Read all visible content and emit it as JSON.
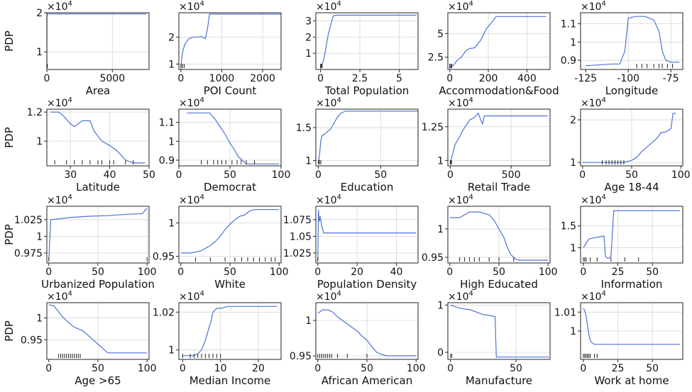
{
  "ylabel": "PDP",
  "sci_base": "×10",
  "sci_exp": "4",
  "chart_data": [
    {
      "type": "line",
      "xlabel": "Area",
      "xlim": [
        0,
        7800
      ],
      "ylim": [
        0.55,
        2.0
      ],
      "xticks": [
        0,
        5000
      ],
      "yticks": [
        1,
        2
      ],
      "grid_x": [
        0,
        5000
      ],
      "grid_y": [
        1,
        2
      ],
      "x": [
        0,
        10,
        40,
        100,
        300,
        7600
      ],
      "y": [
        0.6,
        1.9,
        1.97,
        1.97,
        1.97,
        1.97
      ],
      "rug": [
        0,
        40
      ]
    },
    {
      "type": "line",
      "xlabel": "POI Count",
      "xlim": [
        -50,
        2450
      ],
      "ylim": [
        0.8,
        2.9
      ],
      "xticks": [
        0,
        1000,
        2000
      ],
      "yticks": [
        1,
        2
      ],
      "grid_x": [
        1000,
        2000
      ],
      "grid_y": [
        1,
        2
      ],
      "x": [
        0,
        20,
        50,
        100,
        150,
        200,
        300,
        400,
        500,
        600,
        650,
        700,
        800,
        2450
      ],
      "y": [
        0.8,
        1.2,
        1.5,
        1.75,
        1.85,
        1.95,
        2.0,
        2.0,
        2.02,
        1.95,
        2.3,
        2.85,
        2.85,
        2.85
      ],
      "rug": [
        0,
        40,
        80
      ]
    },
    {
      "type": "line",
      "xlabel": "Total Population",
      "xlim": [
        -300,
        6200
      ],
      "ylim": [
        0.0,
        3.5
      ],
      "xticks": [
        0,
        2.5,
        5.0
      ],
      "xtick_pos": [
        0,
        2500,
        5000
      ],
      "yticks": [
        1,
        2,
        3
      ],
      "grid_x": [
        2500,
        5000
      ],
      "grid_y": [
        1,
        2,
        3
      ],
      "x": [
        0,
        200,
        500,
        800,
        1000,
        6100
      ],
      "y": [
        0.05,
        0.6,
        2.2,
        3.3,
        3.35,
        3.35
      ],
      "rug": [
        0,
        50,
        100
      ]
    },
    {
      "type": "line",
      "xlabel": "Accommodation&Food",
      "xlim": [
        -10,
        520
      ],
      "ylim": [
        1.2,
        7.2
      ],
      "xticks": [
        0,
        200,
        400
      ],
      "yticks": [
        2.5,
        5.0
      ],
      "grid_x": [
        200,
        400
      ],
      "grid_y": [
        2.5,
        5.0
      ],
      "x": [
        0,
        20,
        40,
        60,
        80,
        100,
        130,
        160,
        190,
        210,
        240,
        260,
        500
      ],
      "y": [
        1.3,
        1.7,
        2.2,
        2.5,
        3.1,
        3.4,
        3.5,
        4.3,
        5.5,
        6.0,
        6.8,
        6.8,
        6.8
      ],
      "rug": [
        0,
        5,
        10
      ]
    },
    {
      "type": "line",
      "xlabel": "Longitude",
      "xlim": [
        -128,
        -68
      ],
      "ylim": [
        0.85,
        1.16
      ],
      "xticks": [
        -125,
        -100,
        -75
      ],
      "yticks": [
        0.9,
        1.0,
        1.1
      ],
      "grid_x": [
        -100,
        -75
      ],
      "grid_y": [
        0.9,
        1.0,
        1.1
      ],
      "x": [
        -125,
        -110,
        -105,
        -102,
        -100,
        -96,
        -90,
        -85,
        -82,
        -80,
        -78,
        -75,
        -70
      ],
      "y": [
        0.87,
        0.88,
        0.88,
        0.95,
        1.13,
        1.14,
        1.14,
        1.12,
        1.06,
        0.95,
        0.9,
        0.89,
        0.89
      ],
      "rug": [
        -95,
        -92,
        -89,
        -85,
        -82,
        -80,
        -77,
        -74
      ]
    },
    {
      "type": "line",
      "xlabel": "Latitude",
      "xlim": [
        24,
        50
      ],
      "ylim": [
        0.83,
        1.22
      ],
      "xticks": [
        30,
        40,
        50
      ],
      "yticks": [
        1.0,
        1.2
      ],
      "grid_x": [
        30,
        40
      ],
      "grid_y": [
        1.0,
        1.2
      ],
      "x": [
        25,
        27,
        28,
        30,
        31,
        32,
        33,
        35,
        36,
        38,
        40,
        42,
        44,
        46,
        49
      ],
      "y": [
        1.2,
        1.2,
        1.18,
        1.12,
        1.1,
        1.12,
        1.14,
        1.14,
        1.07,
        1.0,
        0.97,
        0.93,
        0.87,
        0.85,
        0.85
      ],
      "rug": [
        26,
        29,
        31,
        33,
        35,
        37,
        38,
        40,
        41,
        44,
        46
      ]
    },
    {
      "type": "line",
      "xlabel": "Democrat",
      "xlim": [
        0,
        100
      ],
      "ylim": [
        0.87,
        1.17
      ],
      "xticks": [
        0,
        50,
        100
      ],
      "yticks": [
        0.9,
        1.0,
        1.1
      ],
      "grid_x": [
        50
      ],
      "grid_y": [
        0.9,
        1.0,
        1.1
      ],
      "x": [
        8,
        20,
        30,
        35,
        40,
        45,
        50,
        55,
        58,
        62,
        66,
        70,
        98
      ],
      "y": [
        1.15,
        1.15,
        1.15,
        1.12,
        1.08,
        1.04,
        0.99,
        0.95,
        0.92,
        0.9,
        0.88,
        0.88,
        0.88
      ],
      "rug": [
        22,
        28,
        34,
        38,
        42,
        46,
        52,
        57,
        61,
        66,
        74
      ]
    },
    {
      "type": "line",
      "xlabel": "Education",
      "xlim": [
        -2,
        80
      ],
      "ylim": [
        0.92,
        1.78
      ],
      "xticks": [
        0,
        50
      ],
      "yticks": [
        1.0,
        1.5
      ],
      "grid_x": [
        50
      ],
      "grid_y": [
        1.0,
        1.5
      ],
      "x": [
        0,
        1,
        2,
        3,
        5,
        8,
        10,
        12,
        15,
        18,
        22,
        80
      ],
      "y": [
        0.95,
        1.1,
        1.3,
        1.38,
        1.4,
        1.45,
        1.48,
        1.55,
        1.65,
        1.72,
        1.75,
        1.75
      ],
      "rug": [
        0,
        1,
        2
      ]
    },
    {
      "type": "line",
      "xlabel": "Retail Trade",
      "xlim": [
        -20,
        820
      ],
      "ylim": [
        0.96,
        1.38
      ],
      "xticks": [
        0,
        500
      ],
      "yticks": [
        1.0,
        1.25
      ],
      "grid_x": [
        500
      ],
      "grid_y": [
        1.0,
        1.25
      ],
      "x": [
        0,
        20,
        40,
        60,
        80,
        100,
        130,
        160,
        200,
        230,
        250,
        265,
        280,
        300,
        800
      ],
      "y": [
        0.98,
        1.05,
        1.12,
        1.15,
        1.18,
        1.22,
        1.26,
        1.3,
        1.32,
        1.35,
        1.3,
        1.27,
        1.33,
        1.33,
        1.33
      ],
      "rug": [
        0,
        5,
        10
      ]
    },
    {
      "type": "line",
      "xlabel": "Age 18-44",
      "xlim": [
        -2,
        102
      ],
      "ylim": [
        0.92,
        2.25
      ],
      "xticks": [
        0,
        50,
        100
      ],
      "yticks": [
        1,
        2
      ],
      "grid_x": [
        50
      ],
      "grid_y": [
        1,
        2
      ],
      "x": [
        0,
        20,
        40,
        45,
        50,
        55,
        60,
        65,
        70,
        75,
        80,
        85,
        90,
        92,
        95
      ],
      "y": [
        1.0,
        1.0,
        1.0,
        1.02,
        1.05,
        1.12,
        1.25,
        1.35,
        1.45,
        1.55,
        1.7,
        1.72,
        1.8,
        2.15,
        2.15
      ],
      "rug": [
        20,
        24,
        27,
        30,
        33,
        36,
        39,
        42
      ]
    },
    {
      "type": "line",
      "xlabel": "Urbanized Population",
      "xlim": [
        -2,
        102
      ],
      "ylim": [
        0.96,
        1.045
      ],
      "xticks": [
        0,
        50,
        100
      ],
      "yticks": [
        0.975,
        1.0,
        1.025
      ],
      "grid_x": [
        50,
        100
      ],
      "grid_y": [
        0.975,
        1.0,
        1.025
      ],
      "x": [
        0,
        2,
        10,
        20,
        40,
        60,
        80,
        95,
        100
      ],
      "y": [
        0.965,
        1.025,
        1.026,
        1.028,
        1.03,
        1.031,
        1.033,
        1.034,
        1.042
      ],
      "rug": [
        0,
        100
      ]
    },
    {
      "type": "line",
      "xlabel": "White",
      "xlim": [
        -2,
        102
      ],
      "ylim": [
        0.94,
        1.025
      ],
      "xticks": [
        0,
        50,
        100
      ],
      "yticks": [
        0.95,
        1.0
      ],
      "grid_x": [
        50
      ],
      "grid_y": [
        0.95,
        1.0
      ],
      "x": [
        0,
        10,
        20,
        25,
        30,
        35,
        40,
        45,
        50,
        55,
        60,
        65,
        70,
        75,
        100
      ],
      "y": [
        0.955,
        0.955,
        0.958,
        0.962,
        0.966,
        0.972,
        0.98,
        0.99,
        0.998,
        1.005,
        1.01,
        1.012,
        1.018,
        1.02,
        1.02
      ],
      "rug": [
        15,
        30,
        45,
        55,
        62,
        68,
        74,
        80,
        86,
        92,
        96
      ]
    },
    {
      "type": "line",
      "xlabel": "Population Density",
      "xlim": [
        -1,
        51
      ],
      "ylim": [
        1.01,
        1.095
      ],
      "xticks": [
        0,
        20,
        40
      ],
      "yticks": [
        1.025,
        1.05,
        1.075
      ],
      "grid_x": [
        20,
        40
      ],
      "grid_y": [
        1.025,
        1.05,
        1.075
      ],
      "x": [
        0,
        0.3,
        0.7,
        1.2,
        2,
        3,
        50
      ],
      "y": [
        1.012,
        1.09,
        1.072,
        1.08,
        1.065,
        1.055,
        1.055
      ],
      "rug": [
        0
      ]
    },
    {
      "type": "line",
      "xlabel": "High Educated",
      "xlim": [
        -2,
        102
      ],
      "ylim": [
        0.94,
        1.04
      ],
      "xticks": [
        0,
        50,
        100
      ],
      "yticks": [
        0.95,
        1.0
      ],
      "grid_x": [
        50
      ],
      "grid_y": [
        0.95,
        1.0
      ],
      "x": [
        0,
        10,
        20,
        30,
        40,
        45,
        50,
        55,
        58,
        62,
        66,
        70,
        100
      ],
      "y": [
        1.02,
        1.02,
        1.03,
        1.03,
        1.025,
        1.015,
        1.0,
        0.985,
        0.97,
        0.955,
        0.948,
        0.945,
        0.945
      ],
      "rug": [
        10,
        15,
        20,
        25,
        30,
        40,
        50,
        65
      ]
    },
    {
      "type": "line",
      "xlabel": "Information",
      "xlim": [
        -2,
        72
      ],
      "ylim": [
        0.65,
        1.95
      ],
      "xticks": [
        0,
        25,
        50
      ],
      "yticks": [
        1.0,
        1.5
      ],
      "grid_x": [
        25,
        50
      ],
      "grid_y": [
        1.0,
        1.5
      ],
      "x": [
        0,
        2,
        4,
        8,
        12,
        15,
        16,
        18,
        20,
        22,
        70
      ],
      "y": [
        1.0,
        1.1,
        1.2,
        1.23,
        1.25,
        1.27,
        0.8,
        0.75,
        0.8,
        1.85,
        1.85
      ],
      "rug": [
        0,
        1,
        2,
        5,
        10,
        20,
        30,
        40
      ]
    },
    {
      "type": "line",
      "xlabel": "Age >65",
      "xlim": [
        -2,
        102
      ],
      "ylim": [
        0.905,
        1.035
      ],
      "xticks": [
        0,
        50,
        100
      ],
      "yticks": [
        0.95,
        1.0
      ],
      "grid_x": [
        50
      ],
      "grid_y": [
        0.95,
        1.0
      ],
      "x": [
        0,
        5,
        15,
        20,
        25,
        30,
        35,
        40,
        45,
        50,
        55,
        60,
        100
      ],
      "y": [
        1.03,
        1.028,
        1.0,
        0.99,
        0.98,
        0.975,
        0.97,
        0.96,
        0.95,
        0.94,
        0.93,
        0.92,
        0.92
      ],
      "rug": [
        10,
        12,
        14,
        16,
        18,
        20,
        22,
        24,
        26,
        28,
        30,
        32
      ]
    },
    {
      "type": "line",
      "xlabel": "Median Income",
      "xlim": [
        -1,
        26
      ],
      "ylim": [
        0.995,
        1.025
      ],
      "xticks": [
        0,
        10,
        20
      ],
      "yticks": [
        1.0,
        1.02
      ],
      "grid_x": [
        10,
        20
      ],
      "grid_y": [
        1.0,
        1.02
      ],
      "x": [
        0,
        3,
        4,
        5,
        6,
        7,
        7.5,
        8,
        9,
        10,
        12,
        25
      ],
      "y": [
        0.997,
        0.997,
        0.998,
        1.0,
        1.005,
        1.012,
        1.015,
        1.02,
        1.022,
        1.022,
        1.023,
        1.023
      ],
      "rug": [
        0,
        2,
        3,
        4,
        5,
        6,
        7,
        8,
        9,
        10
      ]
    },
    {
      "type": "line",
      "xlabel": "African American",
      "xlim": [
        -2,
        102
      ],
      "ylim": [
        0.945,
        1.025
      ],
      "xticks": [
        0,
        50,
        100
      ],
      "yticks": [
        0.95,
        1.0
      ],
      "grid_x": [
        50
      ],
      "grid_y": [
        0.95,
        1.0
      ],
      "x": [
        0,
        5,
        10,
        15,
        20,
        25,
        30,
        35,
        40,
        45,
        50,
        55,
        60,
        65,
        70,
        100
      ],
      "y": [
        1.01,
        1.015,
        1.015,
        1.012,
        1.005,
        1.0,
        0.995,
        0.99,
        0.985,
        0.978,
        0.972,
        0.963,
        0.955,
        0.952,
        0.95,
        0.95
      ],
      "rug": [
        0,
        2,
        4,
        6,
        8,
        10,
        12,
        14,
        20,
        30,
        50
      ]
    },
    {
      "type": "line",
      "xlabel": "Manufacture",
      "xlim": [
        -2,
        76
      ],
      "ylim": [
        -0.15,
        1.05
      ],
      "xticks": [
        0,
        50
      ],
      "yticks": [
        0,
        1
      ],
      "grid_x": [
        50
      ],
      "grid_y": [
        0,
        1
      ],
      "x": [
        0,
        5,
        10,
        15,
        20,
        25,
        30,
        34,
        35,
        36,
        75
      ],
      "y": [
        1.0,
        0.95,
        0.92,
        0.9,
        0.85,
        0.8,
        0.78,
        0.75,
        -0.1,
        -0.1,
        -0.1
      ],
      "rug": [
        0,
        1
      ]
    },
    {
      "type": "line",
      "xlabel": "Work at home",
      "xlim": [
        -2,
        72
      ],
      "ylim": [
        0.985,
        1.015
      ],
      "xticks": [
        0,
        25,
        50
      ],
      "yticks": [
        1.0,
        1.01
      ],
      "grid_x": [
        25,
        50
      ],
      "grid_y": [
        1.0,
        1.01
      ],
      "x": [
        0,
        1,
        2,
        3,
        4,
        5,
        6,
        8,
        10,
        70
      ],
      "y": [
        1.012,
        1.011,
        1.008,
        1.003,
        0.998,
        0.995,
        0.994,
        0.993,
        0.993,
        0.993
      ],
      "rug": [
        0,
        1,
        2,
        3,
        4,
        5,
        8,
        10
      ]
    }
  ]
}
